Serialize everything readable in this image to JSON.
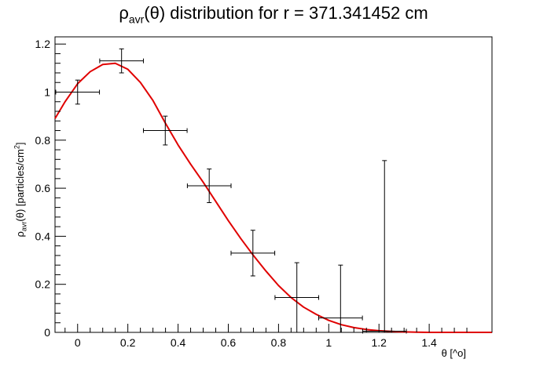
{
  "chart_data": {
    "type": "scatter",
    "title": {
      "prefix": "ρ",
      "sub": "avr",
      "rest": "(θ) distribution for r = 371.341452 cm"
    },
    "ylabel": {
      "prefix": "ρ",
      "sub": "avr",
      "middle": "(θ) [particles/cm",
      "sup": "2",
      "suffix": "]"
    },
    "xlabel": "θ [^o]",
    "xlim": [
      -0.09,
      1.65
    ],
    "ylim": [
      0,
      1.23
    ],
    "x_ticks": [
      "0",
      "0.2",
      "0.4",
      "0.6",
      "0.8",
      "1",
      "1.2",
      "1.4"
    ],
    "y_ticks": [
      "0",
      "0.2",
      "0.4",
      "0.6",
      "0.8",
      "1",
      "1.2"
    ],
    "grid": false,
    "series": [
      {
        "kind": "data",
        "color": "#000000",
        "points": [
          {
            "x": 0.0,
            "y": 1.0,
            "xerr": 0.087,
            "yerr_lo": 0.05,
            "yerr_hi": 0.05
          },
          {
            "x": 0.175,
            "y": 1.13,
            "xerr": 0.087,
            "yerr_lo": 0.05,
            "yerr_hi": 0.05
          },
          {
            "x": 0.349,
            "y": 0.84,
            "xerr": 0.087,
            "yerr_lo": 0.06,
            "yerr_hi": 0.06
          },
          {
            "x": 0.524,
            "y": 0.61,
            "xerr": 0.087,
            "yerr_lo": 0.07,
            "yerr_hi": 0.07
          },
          {
            "x": 0.698,
            "y": 0.33,
            "xerr": 0.087,
            "yerr_lo": 0.095,
            "yerr_hi": 0.095
          },
          {
            "x": 0.873,
            "y": 0.145,
            "xerr": 0.087,
            "yerr_lo": 0.145,
            "yerr_hi": 0.145
          },
          {
            "x": 1.047,
            "y": 0.06,
            "xerr": 0.087,
            "yerr_lo": 0.06,
            "yerr_hi": 0.22
          },
          {
            "x": 1.222,
            "y": 0.005,
            "xerr": 0.087,
            "yerr_lo": 0.005,
            "yerr_hi": 0.71
          }
        ]
      },
      {
        "kind": "fit",
        "color": "#e00000",
        "points": [
          {
            "x": -0.09,
            "y": 0.89
          },
          {
            "x": -0.05,
            "y": 0.96
          },
          {
            "x": 0.0,
            "y": 1.035
          },
          {
            "x": 0.05,
            "y": 1.085
          },
          {
            "x": 0.1,
            "y": 1.115
          },
          {
            "x": 0.15,
            "y": 1.12
          },
          {
            "x": 0.2,
            "y": 1.095
          },
          {
            "x": 0.25,
            "y": 1.04
          },
          {
            "x": 0.3,
            "y": 0.965
          },
          {
            "x": 0.35,
            "y": 0.87
          },
          {
            "x": 0.4,
            "y": 0.78
          },
          {
            "x": 0.45,
            "y": 0.7
          },
          {
            "x": 0.5,
            "y": 0.625
          },
          {
            "x": 0.55,
            "y": 0.545
          },
          {
            "x": 0.6,
            "y": 0.465
          },
          {
            "x": 0.65,
            "y": 0.39
          },
          {
            "x": 0.7,
            "y": 0.32
          },
          {
            "x": 0.75,
            "y": 0.255
          },
          {
            "x": 0.8,
            "y": 0.195
          },
          {
            "x": 0.85,
            "y": 0.145
          },
          {
            "x": 0.9,
            "y": 0.105
          },
          {
            "x": 0.95,
            "y": 0.075
          },
          {
            "x": 1.0,
            "y": 0.05
          },
          {
            "x": 1.05,
            "y": 0.032
          },
          {
            "x": 1.1,
            "y": 0.02
          },
          {
            "x": 1.15,
            "y": 0.012
          },
          {
            "x": 1.2,
            "y": 0.007
          },
          {
            "x": 1.25,
            "y": 0.004
          },
          {
            "x": 1.3,
            "y": 0.002
          },
          {
            "x": 1.35,
            "y": 0.001
          },
          {
            "x": 1.4,
            "y": 0.0
          },
          {
            "x": 1.5,
            "y": 0.0
          },
          {
            "x": 1.6,
            "y": 0.0
          },
          {
            "x": 1.65,
            "y": 0.0
          }
        ]
      }
    ]
  }
}
